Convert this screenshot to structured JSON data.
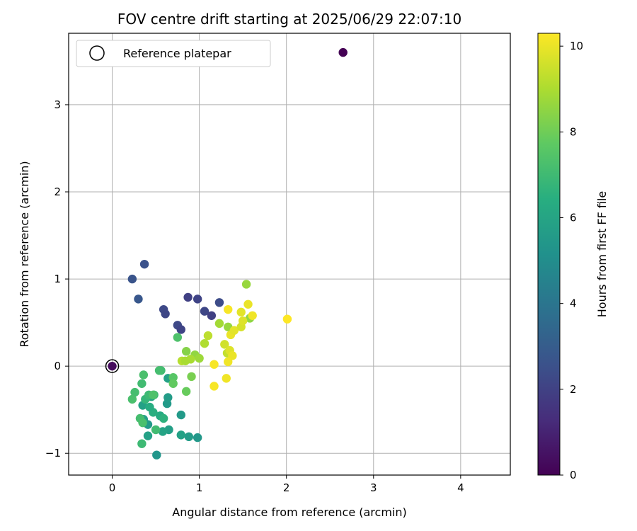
{
  "chart_data": {
    "type": "scatter",
    "title": "FOV centre drift starting at 2025/06/29 22:07:10",
    "xlabel": "Angular distance from reference (arcmin)",
    "ylabel": "Rotation from reference (arcmin)",
    "xlim": [
      -0.5,
      4.57
    ],
    "ylim": [
      -1.25,
      3.82
    ],
    "xticks": [
      0,
      1,
      2,
      3,
      4
    ],
    "yticks": [
      -1,
      0,
      1,
      2,
      3
    ],
    "grid": true,
    "legend": {
      "placement": "upper-left",
      "entries": [
        "Reference platepar"
      ]
    },
    "reference_point": {
      "x": 0,
      "y": 0
    },
    "colorbar": {
      "label": "Hours from first FF file",
      "colormap": "viridis",
      "range": [
        0,
        10.3
      ],
      "ticks": [
        0,
        2,
        4,
        6,
        8,
        10
      ]
    },
    "points": [
      {
        "x": 2.65,
        "y": 3.6,
        "c": 0.0
      },
      {
        "x": 0.0,
        "y": 0.0,
        "c": 0.3
      },
      {
        "x": 0.23,
        "y": 1.0,
        "c": 2.7
      },
      {
        "x": 0.37,
        "y": 1.17,
        "c": 2.6
      },
      {
        "x": 0.3,
        "y": 0.77,
        "c": 2.8
      },
      {
        "x": 0.59,
        "y": 0.65,
        "c": 2.3
      },
      {
        "x": 0.61,
        "y": 0.6,
        "c": 2.2
      },
      {
        "x": 0.87,
        "y": 0.79,
        "c": 2.0
      },
      {
        "x": 0.98,
        "y": 0.77,
        "c": 2.1
      },
      {
        "x": 1.06,
        "y": 0.63,
        "c": 2.2
      },
      {
        "x": 1.14,
        "y": 0.58,
        "c": 2.0
      },
      {
        "x": 1.23,
        "y": 0.73,
        "c": 2.4
      },
      {
        "x": 0.75,
        "y": 0.47,
        "c": 2.3
      },
      {
        "x": 0.79,
        "y": 0.42,
        "c": 2.1
      },
      {
        "x": 0.98,
        "y": -0.82,
        "c": 5.5
      },
      {
        "x": 0.88,
        "y": -0.81,
        "c": 5.7
      },
      {
        "x": 0.79,
        "y": -0.79,
        "c": 5.9
      },
      {
        "x": 0.79,
        "y": -0.56,
        "c": 5.6
      },
      {
        "x": 0.51,
        "y": -1.02,
        "c": 5.4
      },
      {
        "x": 0.65,
        "y": -0.73,
        "c": 5.8
      },
      {
        "x": 0.58,
        "y": -0.75,
        "c": 6.0
      },
      {
        "x": 0.41,
        "y": -0.8,
        "c": 5.9
      },
      {
        "x": 0.41,
        "y": -0.67,
        "c": 5.6
      },
      {
        "x": 0.36,
        "y": -0.61,
        "c": 5.8
      },
      {
        "x": 0.35,
        "y": -0.45,
        "c": 5.9
      },
      {
        "x": 0.63,
        "y": -0.43,
        "c": 5.6
      },
      {
        "x": 0.64,
        "y": -0.36,
        "c": 5.7
      },
      {
        "x": 0.64,
        "y": -0.14,
        "c": 5.9
      },
      {
        "x": 0.45,
        "y": -0.35,
        "c": 6.1
      },
      {
        "x": 0.55,
        "y": -0.57,
        "c": 6.3
      },
      {
        "x": 0.47,
        "y": -0.53,
        "c": 6.5
      },
      {
        "x": 0.59,
        "y": -0.6,
        "c": 6.6
      },
      {
        "x": 0.43,
        "y": -0.47,
        "c": 6.4
      },
      {
        "x": 0.38,
        "y": -0.38,
        "c": 6.8
      },
      {
        "x": 0.48,
        "y": -0.33,
        "c": 6.9
      },
      {
        "x": 0.42,
        "y": -0.33,
        "c": 7.0
      },
      {
        "x": 0.26,
        "y": -0.3,
        "c": 7.2
      },
      {
        "x": 0.23,
        "y": -0.38,
        "c": 7.3
      },
      {
        "x": 0.34,
        "y": -0.2,
        "c": 7.1
      },
      {
        "x": 0.32,
        "y": -0.6,
        "c": 7.2
      },
      {
        "x": 0.34,
        "y": -0.89,
        "c": 7.0
      },
      {
        "x": 0.5,
        "y": -0.73,
        "c": 7.1
      },
      {
        "x": 0.35,
        "y": -0.65,
        "c": 7.3
      },
      {
        "x": 0.56,
        "y": -0.05,
        "c": 7.1
      },
      {
        "x": 0.54,
        "y": -0.05,
        "c": 7.2
      },
      {
        "x": 0.36,
        "y": -0.1,
        "c": 7.3
      },
      {
        "x": 0.47,
        "y": -0.33,
        "c": 7.4
      },
      {
        "x": 0.7,
        "y": -0.13,
        "c": 7.6
      },
      {
        "x": 0.7,
        "y": -0.2,
        "c": 7.8
      },
      {
        "x": 0.85,
        "y": -0.29,
        "c": 7.9
      },
      {
        "x": 0.75,
        "y": 0.33,
        "c": 7.4
      },
      {
        "x": 0.91,
        "y": -0.12,
        "c": 8.2
      },
      {
        "x": 0.85,
        "y": 0.17,
        "c": 8.4
      },
      {
        "x": 0.95,
        "y": 0.13,
        "c": 8.6
      },
      {
        "x": 1.0,
        "y": 0.09,
        "c": 8.8
      },
      {
        "x": 0.9,
        "y": 0.08,
        "c": 9.0
      },
      {
        "x": 0.8,
        "y": 0.06,
        "c": 9.2
      },
      {
        "x": 0.84,
        "y": 0.06,
        "c": 9.0
      },
      {
        "x": 1.06,
        "y": 0.26,
        "c": 9.1
      },
      {
        "x": 1.1,
        "y": 0.35,
        "c": 9.3
      },
      {
        "x": 1.23,
        "y": 0.49,
        "c": 8.9
      },
      {
        "x": 1.33,
        "y": 0.45,
        "c": 8.7
      },
      {
        "x": 1.54,
        "y": 0.94,
        "c": 8.7
      },
      {
        "x": 1.58,
        "y": 0.55,
        "c": 8.6
      },
      {
        "x": 1.32,
        "y": 0.15,
        "c": 9.4
      },
      {
        "x": 1.29,
        "y": 0.25,
        "c": 9.6
      },
      {
        "x": 1.35,
        "y": 0.18,
        "c": 9.8
      },
      {
        "x": 1.38,
        "y": 0.12,
        "c": 10.0
      },
      {
        "x": 1.33,
        "y": 0.05,
        "c": 10.1
      },
      {
        "x": 1.17,
        "y": 0.02,
        "c": 10.2
      },
      {
        "x": 1.17,
        "y": -0.23,
        "c": 10.2
      },
      {
        "x": 1.31,
        "y": -0.14,
        "c": 10.1
      },
      {
        "x": 1.36,
        "y": 0.36,
        "c": 10.0
      },
      {
        "x": 1.4,
        "y": 0.41,
        "c": 9.9
      },
      {
        "x": 1.48,
        "y": 0.45,
        "c": 9.7
      },
      {
        "x": 1.5,
        "y": 0.52,
        "c": 9.8
      },
      {
        "x": 1.48,
        "y": 0.62,
        "c": 9.9
      },
      {
        "x": 1.56,
        "y": 0.71,
        "c": 10.0
      },
      {
        "x": 1.61,
        "y": 0.58,
        "c": 10.1
      },
      {
        "x": 1.33,
        "y": 0.65,
        "c": 10.2
      },
      {
        "x": 2.01,
        "y": 0.54,
        "c": 10.3
      }
    ]
  }
}
